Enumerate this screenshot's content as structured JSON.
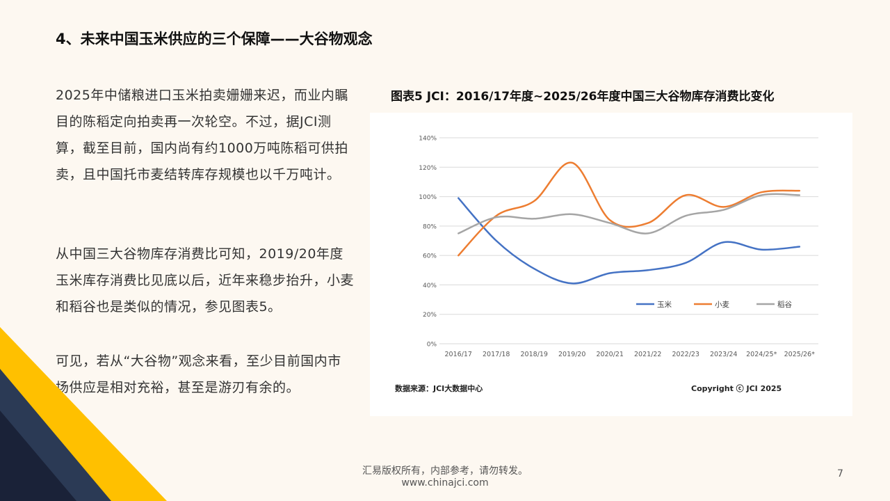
{
  "slide": {
    "title": "4、未来中国玉米供应的三个保障——大谷物观念",
    "paragraphs": [
      "2025年中储粮进口玉米拍卖姗姗来迟，而业内瞩目的陈稻定向拍卖再一次轮空。不过，据JCI测算，截至目前，国内尚有约1000万吨陈稻可供拍卖，且中国托市麦结转库存规模也以千万吨计。",
      "从中国三大谷物库存消费比可知，2019/20年度玉米库存消费比见底以后，近年来稳步抬升，小麦和稻谷也是类似的情况，参见图表5。",
      "可见，若从“大谷物”观念来看，至少目前国内市场供应是相对充裕，甚至是游刃有余的。"
    ],
    "footer_line1": "汇易版权所有，内部参考，请勿转发。",
    "footer_line2": "www.chinajci.com",
    "page_number": "7"
  },
  "chart_title": "图表5   JCI：2016/17年度~2025/26年度中国三大谷物库存消费比变化",
  "chart_source": "数据来源：JCI大数据中心",
  "chart_copyright": "Copyright ⓒ JCI 2025",
  "colors": {
    "corn": "#4472c4",
    "wheat": "#ed7d31",
    "rice": "#a5a5a5",
    "deco_yellow": "#ffc000",
    "deco_navy": "#1f2a44"
  },
  "chart_data": {
    "type": "line",
    "title": "JCI：2016/17年度~2025/26年度中国三大谷物库存消费比变化",
    "categories": [
      "2016/17",
      "2017/18",
      "2018/19",
      "2019/20",
      "2020/21",
      "2021/22",
      "2022/23",
      "2023/24",
      "2024/25*",
      "2025/26*"
    ],
    "series": [
      {
        "name": "玉米",
        "values": [
          99,
          70,
          51,
          41,
          48,
          50,
          55,
          69,
          64,
          66
        ],
        "color": "#4472c4"
      },
      {
        "name": "小麦",
        "values": [
          60,
          87,
          97,
          123,
          84,
          82,
          101,
          93,
          103,
          104
        ],
        "color": "#ed7d31"
      },
      {
        "name": "稻谷",
        "values": [
          75,
          86,
          85,
          88,
          82,
          75,
          87,
          91,
          101,
          101
        ],
        "color": "#a5a5a5"
      }
    ],
    "yticks": [
      "0%",
      "20%",
      "40%",
      "60%",
      "80%",
      "100%",
      "120%",
      "140%"
    ],
    "ylim": [
      0,
      140
    ],
    "xlabel": "",
    "ylabel": "",
    "legend_position": "inside-bottom-right",
    "grid": true
  }
}
